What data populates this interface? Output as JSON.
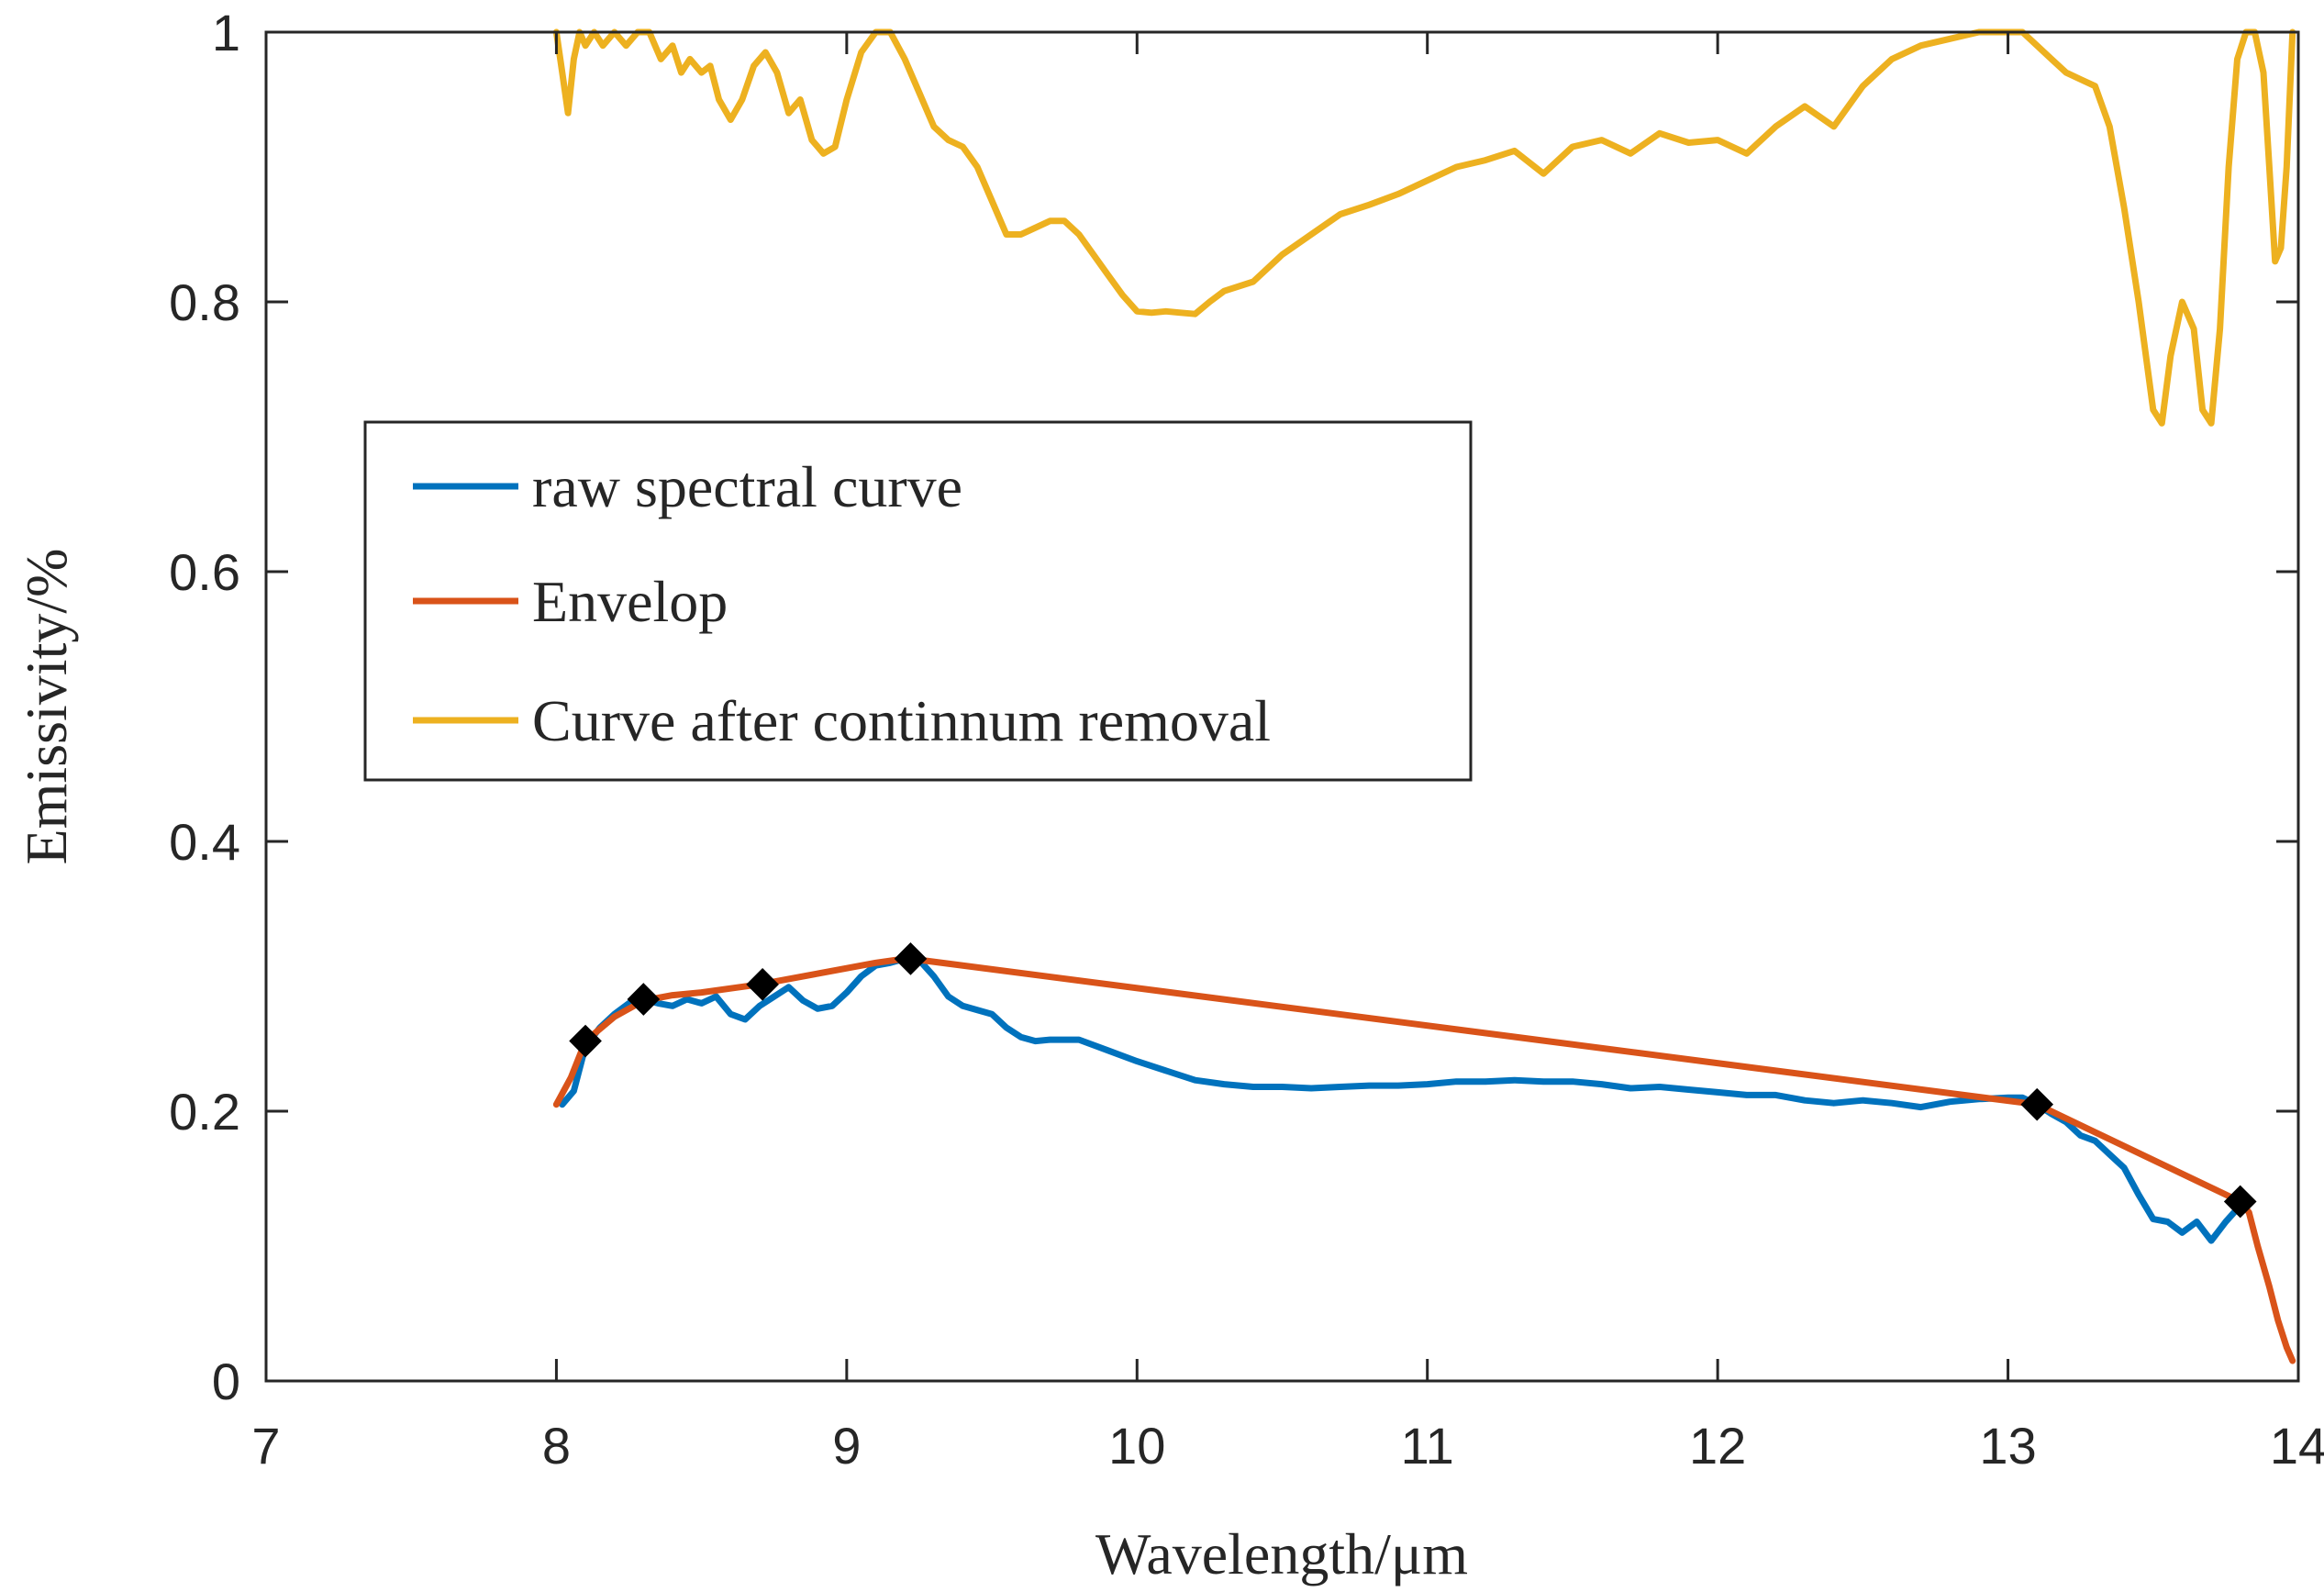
{
  "chart_data": {
    "type": "line",
    "title": "",
    "xlabel": "Wavelength/μm",
    "ylabel": "Emissivity/%",
    "xlim": [
      7,
      14
    ],
    "ylim": [
      0,
      1
    ],
    "x_ticks": [
      7,
      8,
      9,
      10,
      11,
      12,
      13,
      14
    ],
    "x_tick_labels": [
      "7",
      "8",
      "9",
      "10",
      "11",
      "12",
      "13",
      "14"
    ],
    "y_ticks": [
      0,
      0.2,
      0.4,
      0.6,
      0.8,
      1
    ],
    "y_tick_labels": [
      "0",
      "0.2",
      "0.4",
      "0.6",
      "0.8",
      "1"
    ],
    "grid": false,
    "legend_position": "middle-left",
    "series": [
      {
        "name": "raw spectral curve",
        "color": "#0072BD",
        "x": [
          8.02,
          8.06,
          8.1,
          8.15,
          8.2,
          8.25,
          8.3,
          8.35,
          8.4,
          8.45,
          8.5,
          8.55,
          8.6,
          8.65,
          8.7,
          8.75,
          8.8,
          8.85,
          8.9,
          8.95,
          9.0,
          9.05,
          9.1,
          9.15,
          9.2,
          9.25,
          9.3,
          9.35,
          9.4,
          9.45,
          9.5,
          9.55,
          9.6,
          9.65,
          9.7,
          9.8,
          9.9,
          10.0,
          10.1,
          10.2,
          10.3,
          10.4,
          10.5,
          10.6,
          10.7,
          10.8,
          10.9,
          11.0,
          11.1,
          11.2,
          11.3,
          11.4,
          11.5,
          11.6,
          11.7,
          11.8,
          11.9,
          12.0,
          12.1,
          12.2,
          12.3,
          12.4,
          12.5,
          12.6,
          12.7,
          12.8,
          12.9,
          13.0,
          13.05,
          13.1,
          13.15,
          13.2,
          13.25,
          13.3,
          13.35,
          13.4,
          13.45,
          13.5,
          13.55,
          13.6,
          13.65,
          13.7,
          13.75,
          13.8,
          13.82
        ],
        "y": [
          0.205,
          0.215,
          0.248,
          0.262,
          0.272,
          0.28,
          0.283,
          0.28,
          0.278,
          0.283,
          0.28,
          0.285,
          0.272,
          0.268,
          0.278,
          0.285,
          0.292,
          0.282,
          0.276,
          0.278,
          0.288,
          0.3,
          0.308,
          0.31,
          0.313,
          0.312,
          0.3,
          0.285,
          0.278,
          0.275,
          0.272,
          0.262,
          0.255,
          0.252,
          0.253,
          0.253,
          0.245,
          0.237,
          0.23,
          0.223,
          0.22,
          0.218,
          0.218,
          0.217,
          0.218,
          0.219,
          0.219,
          0.22,
          0.222,
          0.222,
          0.223,
          0.222,
          0.222,
          0.22,
          0.217,
          0.218,
          0.216,
          0.214,
          0.212,
          0.212,
          0.208,
          0.206,
          0.208,
          0.206,
          0.203,
          0.207,
          0.209,
          0.21,
          0.21,
          0.205,
          0.198,
          0.192,
          0.182,
          0.178,
          0.168,
          0.158,
          0.138,
          0.12,
          0.118,
          0.11,
          0.118,
          0.104,
          0.118,
          0.13,
          0.132
        ]
      },
      {
        "name": "Envelop",
        "color": "#D95319",
        "x": [
          8.0,
          8.05,
          8.1,
          8.2,
          8.3,
          8.4,
          8.5,
          8.6,
          8.7,
          8.8,
          8.9,
          9.0,
          9.1,
          9.2,
          9.22,
          13.1,
          13.8,
          13.83,
          13.86,
          13.9,
          13.93,
          13.96,
          13.98
        ],
        "y": [
          0.205,
          0.225,
          0.252,
          0.27,
          0.282,
          0.286,
          0.288,
          0.291,
          0.294,
          0.298,
          0.302,
          0.306,
          0.31,
          0.313,
          0.313,
          0.205,
          0.133,
          0.125,
          0.1,
          0.07,
          0.045,
          0.025,
          0.015
        ]
      },
      {
        "name": "Curve after continnum removal",
        "color": "#EDB120",
        "x": [
          8.0,
          8.02,
          8.04,
          8.06,
          8.08,
          8.1,
          8.13,
          8.16,
          8.2,
          8.24,
          8.28,
          8.32,
          8.36,
          8.4,
          8.43,
          8.46,
          8.5,
          8.53,
          8.56,
          8.6,
          8.64,
          8.68,
          8.72,
          8.76,
          8.8,
          8.84,
          8.88,
          8.92,
          8.96,
          9.0,
          9.05,
          9.1,
          9.15,
          9.2,
          9.25,
          9.3,
          9.35,
          9.4,
          9.45,
          9.5,
          9.55,
          9.6,
          9.65,
          9.7,
          9.75,
          9.8,
          9.85,
          9.9,
          9.95,
          10.0,
          10.05,
          10.1,
          10.15,
          10.2,
          10.25,
          10.3,
          10.4,
          10.5,
          10.6,
          10.7,
          10.8,
          10.9,
          11.0,
          11.1,
          11.2,
          11.3,
          11.4,
          11.5,
          11.6,
          11.7,
          11.8,
          11.9,
          12.0,
          12.1,
          12.2,
          12.3,
          12.4,
          12.5,
          12.6,
          12.7,
          12.8,
          12.9,
          13.0,
          13.05,
          13.1,
          13.15,
          13.2,
          13.25,
          13.3,
          13.35,
          13.4,
          13.45,
          13.5,
          13.53,
          13.56,
          13.6,
          13.64,
          13.67,
          13.7,
          13.73,
          13.76,
          13.79,
          13.82,
          13.85,
          13.88,
          13.9,
          13.92,
          13.94,
          13.96,
          13.98
        ],
        "y": [
          1.0,
          0.97,
          0.94,
          0.98,
          1.0,
          0.99,
          1.0,
          0.99,
          1.0,
          0.99,
          1.0,
          1.0,
          0.98,
          0.99,
          0.97,
          0.98,
          0.97,
          0.975,
          0.95,
          0.935,
          0.95,
          0.975,
          0.985,
          0.97,
          0.94,
          0.95,
          0.92,
          0.91,
          0.915,
          0.95,
          0.985,
          1.0,
          1.0,
          0.98,
          0.955,
          0.93,
          0.92,
          0.915,
          0.9,
          0.875,
          0.85,
          0.85,
          0.855,
          0.86,
          0.86,
          0.85,
          0.835,
          0.82,
          0.805,
          0.793,
          0.792,
          0.793,
          0.792,
          0.791,
          0.8,
          0.808,
          0.815,
          0.835,
          0.85,
          0.865,
          0.872,
          0.88,
          0.89,
          0.9,
          0.905,
          0.912,
          0.895,
          0.915,
          0.92,
          0.91,
          0.925,
          0.918,
          0.92,
          0.91,
          0.93,
          0.945,
          0.93,
          0.96,
          0.98,
          0.99,
          0.995,
          1.0,
          1.0,
          1.0,
          0.99,
          0.98,
          0.97,
          0.965,
          0.96,
          0.93,
          0.87,
          0.8,
          0.72,
          0.71,
          0.76,
          0.8,
          0.78,
          0.72,
          0.71,
          0.78,
          0.9,
          0.98,
          1.0,
          1.0,
          0.97,
          0.9,
          0.83,
          0.84,
          0.9,
          1.0
        ]
      }
    ],
    "markers": {
      "color": "#000000",
      "x": [
        8.1,
        8.3,
        8.71,
        9.22,
        13.1,
        13.8
      ],
      "y": [
        0.252,
        0.283,
        0.294,
        0.313,
        0.205,
        0.133
      ]
    }
  }
}
